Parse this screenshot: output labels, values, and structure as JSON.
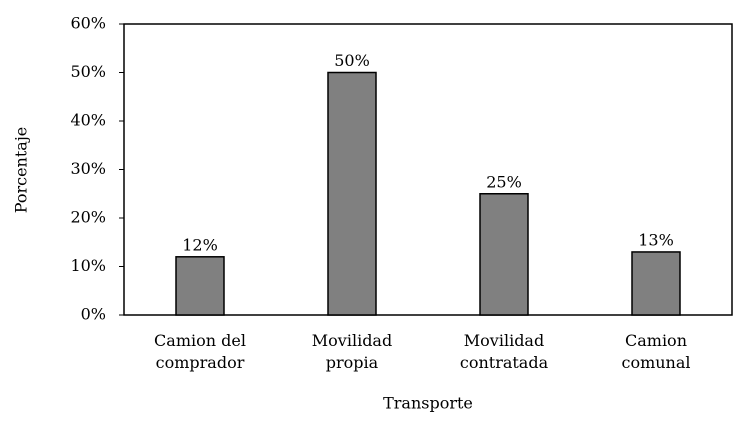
{
  "chart_data": {
    "type": "bar",
    "x_label": "Transporte",
    "y_label": "Porcentaje",
    "categories": [
      "Camion del\ncomprador",
      "Movilidad\npropia",
      "Movilidad\ncontratada",
      "Camion\ncomunal"
    ],
    "values": [
      12,
      50,
      25,
      13
    ],
    "value_labels": [
      "12%",
      "50%",
      "25%",
      "13%"
    ],
    "color": "#808080",
    "ylim": [
      0,
      60
    ],
    "yticks": [
      {
        "value": 0,
        "label": "0%"
      },
      {
        "value": 10,
        "label": "10%"
      },
      {
        "value": 20,
        "label": "20%"
      },
      {
        "value": 30,
        "label": "30%"
      },
      {
        "value": 40,
        "label": "40%"
      },
      {
        "value": 50,
        "label": "50%"
      },
      {
        "value": 60,
        "label": "60%"
      }
    ],
    "grid": false
  }
}
